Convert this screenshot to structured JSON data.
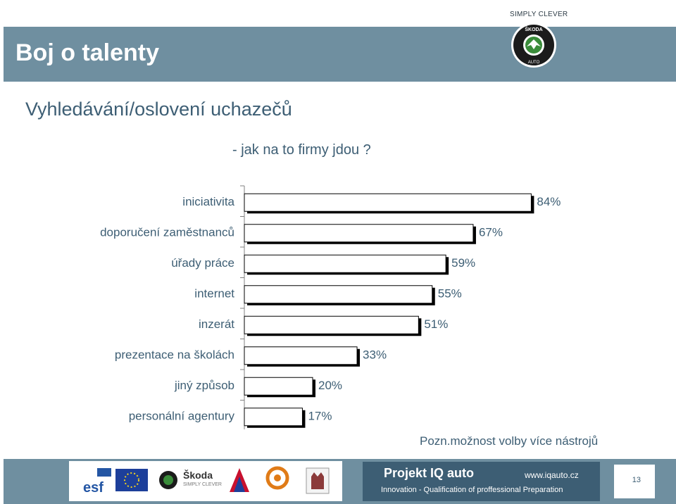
{
  "header": {
    "title": "Boj o talenty",
    "tagline": "SIMPLY CLEVER",
    "brand_logo": "skoda-auto-logo"
  },
  "section_title": "Vyhledávání/oslovení uchazečů",
  "subtitle": "- jak na to firmy jdou ?",
  "chart_data": {
    "type": "bar",
    "orientation": "horizontal",
    "categories": [
      "iniciativita",
      "doporučení zaměstnanců",
      "úřady práce",
      "internet",
      "inzerát",
      "prezentace na školách",
      "jiný způsob",
      "personální agentury"
    ],
    "values": [
      84,
      67,
      59,
      55,
      51,
      33,
      20,
      17
    ],
    "value_labels": [
      "84%",
      "67%",
      "59%",
      "55%",
      "51%",
      "33%",
      "20%",
      "17%"
    ],
    "unit": "%",
    "xlim": [
      0,
      100
    ],
    "bar_color": "#ffffff",
    "bar_shadow_color": "#000000"
  },
  "note": "Pozn.možnost volby více nástrojů",
  "footer": {
    "logos": [
      "esf-logo",
      "eu-flag-logo",
      "skoda-logo",
      "aja-logo",
      "iq-auto-logo",
      "crest-logo"
    ],
    "skoda_text": "Škoda",
    "skoda_sub": "SIMPLY CLEVER",
    "project_title": "Projekt  IQ auto",
    "project_url": "www.iqauto.cz",
    "project_desc": "Innovation - Qualification of proffessional Preparation",
    "page_number": "13"
  },
  "colors": {
    "header_band": "#6f8fa0",
    "title_text": "#3d5e74",
    "project_box": "#3d5e74"
  }
}
